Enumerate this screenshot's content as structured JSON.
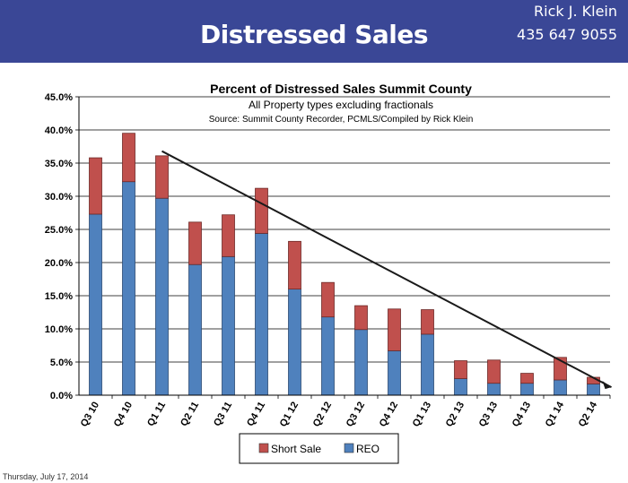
{
  "header": {
    "title": "Distressed Sales",
    "agent_name": "Rick J. Klein",
    "agent_phone": "435 647 9055"
  },
  "footer": {
    "date": "Thursday, July 17, 2014"
  },
  "colors": {
    "banner": "#3a4796",
    "reo": "#4f81bd",
    "short_sale": "#c0504d",
    "trend": "#1a1a1a"
  },
  "chart_data": {
    "type": "bar",
    "stacked": true,
    "title": "Percent of Distressed Sales Summit County",
    "subtitle": "All Property types excluding fractionals",
    "source": "Source: Summit County Recorder, PCMLS/Compiled by Rick Klein",
    "xlabel": "",
    "ylabel": "",
    "ylim": [
      0,
      45
    ],
    "yticks": [
      "0.0%",
      "5.0%",
      "10.0%",
      "15.0%",
      "20.0%",
      "25.0%",
      "30.0%",
      "35.0%",
      "40.0%",
      "45.0%"
    ],
    "grid": true,
    "legend_position": "bottom",
    "categories": [
      "Q3 10",
      "Q4 10",
      "Q1 11",
      "Q2 11",
      "Q3 11",
      "Q4 11",
      "Q1 12",
      "Q2 12",
      "Q3 12",
      "Q4 12",
      "Q1 13",
      "Q2 13",
      "Q3 13",
      "Q4 13",
      "Q1 14",
      "Q2 14"
    ],
    "series": [
      {
        "name": "REO",
        "values": [
          27.3,
          32.2,
          29.7,
          19.7,
          20.9,
          24.4,
          16.0,
          11.8,
          9.9,
          6.7,
          9.2,
          2.5,
          1.8,
          1.8,
          2.3,
          1.7
        ]
      },
      {
        "name": "Short Sale",
        "values": [
          8.5,
          7.3,
          6.4,
          6.4,
          6.3,
          6.8,
          7.2,
          5.2,
          3.6,
          6.3,
          3.7,
          2.7,
          3.5,
          1.5,
          3.4,
          1.0
        ]
      }
    ],
    "trendline": {
      "x_start": "Q1 11",
      "y_start": 36.8,
      "x_end": "Q2 14",
      "y_end": 1.2
    }
  }
}
